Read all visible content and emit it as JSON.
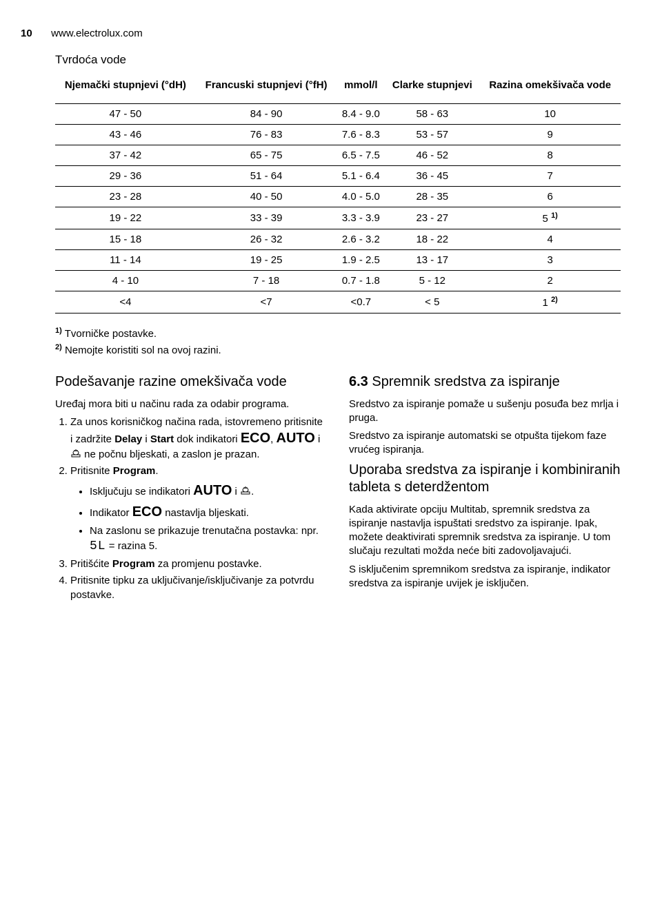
{
  "header": {
    "pagenum": "10",
    "url": "www.electrolux.com"
  },
  "table_title": "Tvrdoća vode",
  "hardness_table": {
    "columns": [
      "Njemački stupnjevi (°dH)",
      "Francuski stupnjevi (°fH)",
      "mmol/l",
      "Clarke stupnjevi",
      "Razina omekšivača vode"
    ],
    "rows": [
      [
        "47 - 50",
        "84 - 90",
        "8.4 - 9.0",
        "58 - 63",
        "10"
      ],
      [
        "43 - 46",
        "76 - 83",
        "7.6 - 8.3",
        "53 - 57",
        "9"
      ],
      [
        "37 - 42",
        "65 - 75",
        "6.5 - 7.5",
        "46 - 52",
        "8"
      ],
      [
        "29 - 36",
        "51 - 64",
        "5.1 - 6.4",
        "36 - 45",
        "7"
      ],
      [
        "23 - 28",
        "40 - 50",
        "4.0 - 5.0",
        "28 - 35",
        "6"
      ],
      [
        "19 - 22",
        "33 - 39",
        "3.3 - 3.9",
        "23 - 27",
        "5"
      ],
      [
        "15 - 18",
        "26 - 32",
        "2.6 - 3.2",
        "18 - 22",
        "4"
      ],
      [
        "11 - 14",
        "19 - 25",
        "1.9 - 2.5",
        "13 - 17",
        "3"
      ],
      [
        "4 - 10",
        "7 - 18",
        "0.7 - 1.8",
        "5 - 12",
        "2"
      ],
      [
        "<4",
        "<7",
        "<0.7",
        "< 5",
        "1"
      ]
    ],
    "footnote_marks": {
      "5": "1)",
      "9": "2)"
    }
  },
  "footnotes": {
    "f1": "Tvorničke postavke.",
    "f2": "Nemojte koristiti sol na ovoj razini."
  },
  "left": {
    "heading": "Podešavanje razine omekšivača vode",
    "intro": "Uređaj mora biti u načinu rada za odabir programa.",
    "step1_a": "Za unos korisničkog načina rada, istovremeno pritisnite i zadržite ",
    "step1_b": "Delay",
    "step1_c": " i ",
    "step1_d": "Start",
    "step1_e": " dok indikatori ",
    "eco": "ECO",
    "step1_f": ", ",
    "auto": "AUTO",
    "step1_g": " i ",
    "step1_h": " ne počnu bljeskati, a zaslon je prazan.",
    "step2": "Pritisnite ",
    "program": "Program",
    "step2_end": ".",
    "b1_a": "Isključuju se indikatori ",
    "b1_b": " i ",
    "b1_end": ".",
    "b2_a": "Indikator ",
    "b2_b": " nastavlja bljeskati.",
    "b3_a": "Na zaslonu se prikazuje trenutačna postavka: npr. ",
    "b3_seg": "5L",
    "b3_b": " = razina 5.",
    "step3_a": "Pritišćite ",
    "step3_b": " za promjenu postavke.",
    "step4": "Pritisnite tipku za uključivanje/isključivanje za potvrdu postavke."
  },
  "right": {
    "heading_num": "6.3",
    "heading": " Spremnik sredstva za ispiranje",
    "p1": "Sredstvo za ispiranje pomaže u sušenju posuđa bez mrlja i pruga.",
    "p2": "Sredstvo za ispiranje automatski se otpušta tijekom faze vrućeg ispiranja.",
    "heading2": "Uporaba sredstva za ispiranje i kombiniranih tableta s deterdžentom",
    "p3": "Kada aktivirate opciju Multitab, spremnik sredstva za ispiranje nastavlja ispuštati sredstvo za ispiranje. Ipak, možete deaktivirati spremnik sredstva za ispiranje. U tom slučaju rezultati možda neće biti zadovoljavajući.",
    "p4": "S isključenim spremnikom sredstva za ispiranje, indikator sredstva za ispiranje uvijek je isključen."
  }
}
